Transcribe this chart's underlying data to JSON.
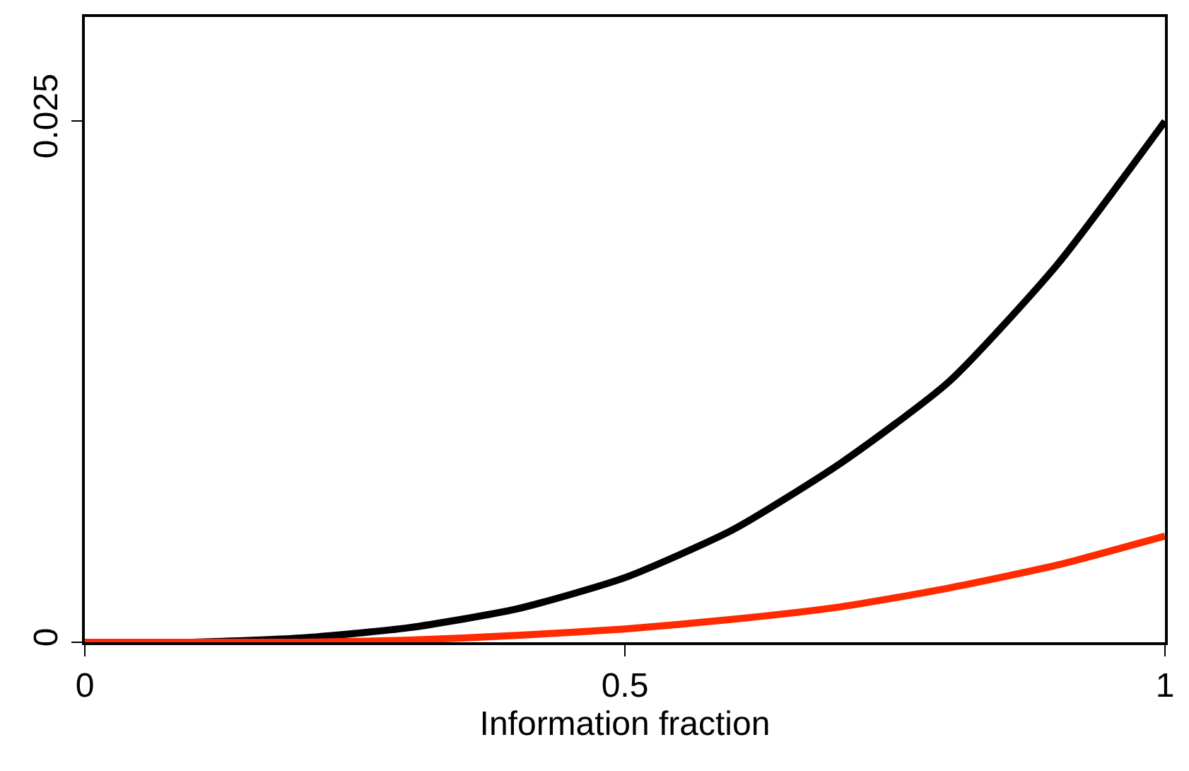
{
  "chart_data": {
    "type": "line",
    "xlabel": "Information fraction",
    "x": [
      0,
      0.1,
      0.2,
      0.3,
      0.4,
      0.5,
      0.6,
      0.7,
      0.8,
      0.9,
      1
    ],
    "series": [
      {
        "color": "#000000",
        "values": [
          0,
          0,
          0.0002,
          0.0007,
          0.0016,
          0.0031,
          0.0054,
          0.0086,
          0.0125,
          0.0181,
          0.025
        ]
      },
      {
        "color": "#ff2a00",
        "values": [
          0,
          0,
          0,
          0.0001,
          0.00033,
          0.00064,
          0.0011,
          0.0017,
          0.0026,
          0.0037,
          0.0051
        ]
      }
    ],
    "xlim": [
      0,
      1
    ],
    "ylim": [
      0,
      0.03
    ],
    "xticks": [
      0,
      0.5,
      1
    ],
    "yticks": [
      0,
      0.025
    ],
    "marker": "none",
    "line_style": "solid"
  }
}
